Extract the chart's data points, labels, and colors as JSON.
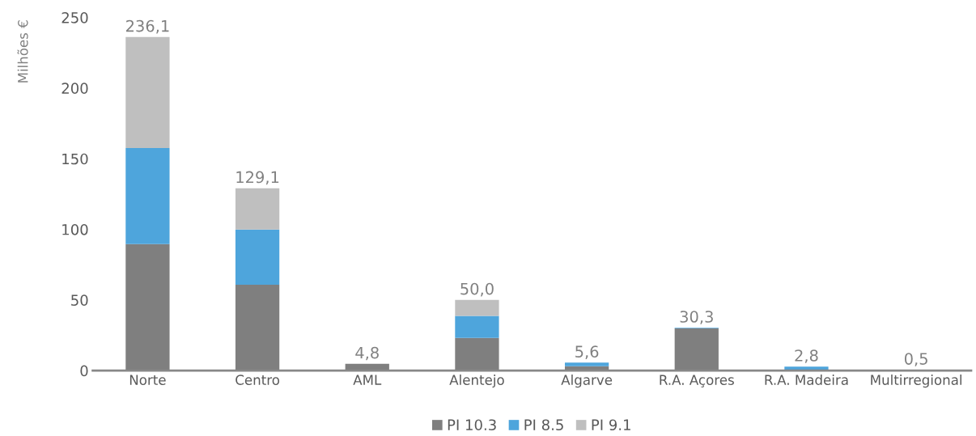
{
  "chart_data": {
    "type": "bar",
    "stacked": true,
    "ylabel": "Milhões €",
    "categories": [
      "Norte",
      "Centro",
      "AML",
      "Alentejo",
      "Algarve",
      "R.A. Açores",
      "R.A. Madeira",
      "Multirregional"
    ],
    "series": [
      {
        "name": "PI 10.3",
        "color": "#7f7f7f",
        "values": [
          89.5,
          60.8,
          4.8,
          23.1,
          3.1,
          29.8,
          0,
          0.5
        ]
      },
      {
        "name": "PI 8.5",
        "color": "#4ea5dc",
        "values": [
          68.1,
          39.1,
          0,
          15.6,
          2.5,
          0.5,
          2.8,
          0
        ]
      },
      {
        "name": "PI 9.1",
        "color": "#bfbfbf",
        "values": [
          78.5,
          29.2,
          0,
          11.3,
          0,
          0,
          0,
          0
        ]
      }
    ],
    "totals": [
      "236,1",
      "129,1",
      "4,8",
      "50,0",
      "5,6",
      "30,3",
      "2,8",
      "0,5"
    ],
    "ylim": [
      0,
      250
    ],
    "yticks": [
      0,
      50,
      100,
      150,
      200,
      250
    ],
    "grid": false,
    "legend": "bottom"
  }
}
